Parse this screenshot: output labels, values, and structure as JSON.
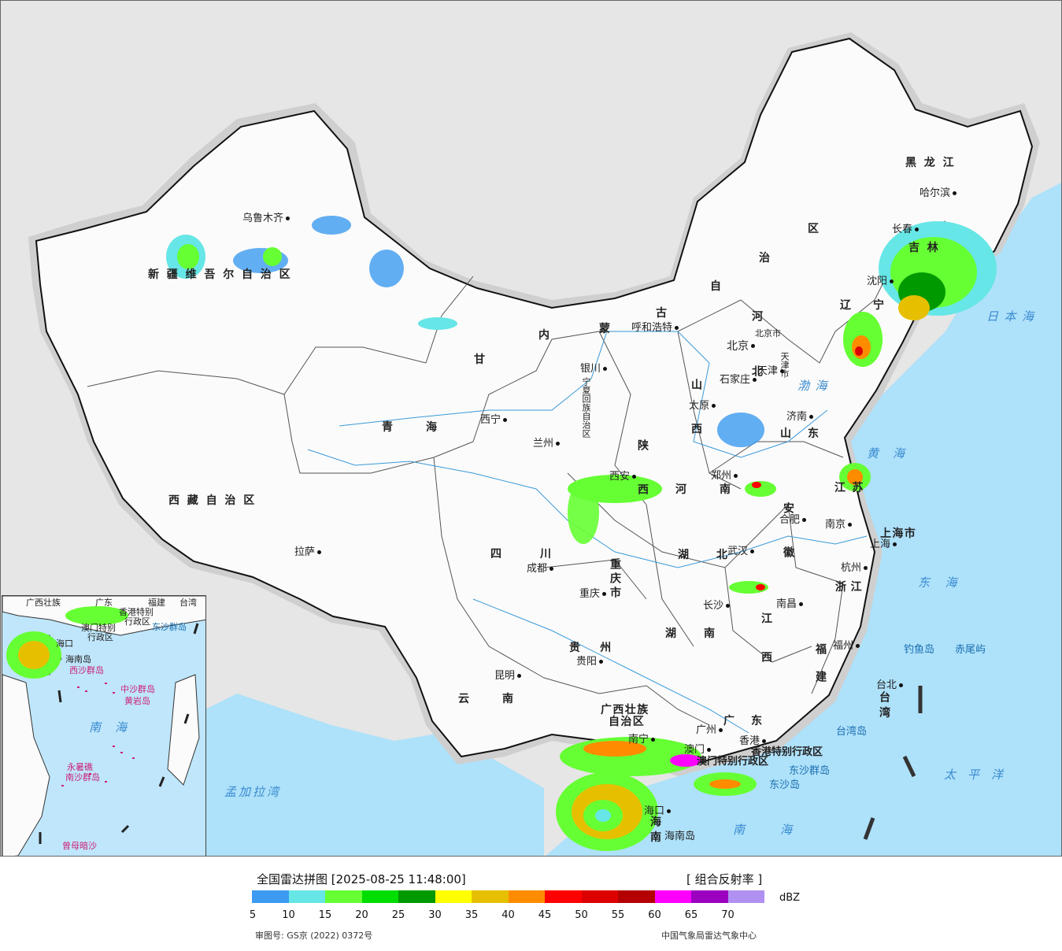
{
  "cities": {
    "urumqi": "乌鲁木齐",
    "lhasa": "拉萨",
    "xining": "西宁",
    "lanzhou": "兰州",
    "yinchuan": "银川",
    "hohhot": "呼和浩特",
    "beijing": "北京",
    "tianjin": "天津",
    "shijiazhuang": "石家庄",
    "taiyuan": "太原",
    "jinan": "济南",
    "zhengzhou": "郑州",
    "xian": "西安",
    "hefei": "合肥",
    "nanjing": "南京",
    "shanghai": "上海",
    "hangzhou": "杭州",
    "wuhan": "武汉",
    "changsha": "长沙",
    "nanchang": "南昌",
    "fuzhou": "福州",
    "taibei": "台北",
    "chengdu": "成都",
    "chongqing": "重庆",
    "guiyang": "贵阳",
    "kunming": "昆明",
    "nanning": "南宁",
    "guangzhou": "广州",
    "hongkong": "香港",
    "macau": "澳门",
    "haikou": "海口",
    "shenyang": "沈阳",
    "changchun": "长春",
    "harbin": "哈尔滨"
  },
  "provinces": {
    "xinjiang": "新疆维吾尔自治区",
    "tibet": "西藏自治区",
    "qinghai": "青海",
    "gansu": "甘",
    "neimenggu_1": "内",
    "neimenggu_2": "蒙",
    "neimenggu_3": "古",
    "neimenggu_4": "自",
    "neimenggu_5": "治",
    "neimenggu_6": "区",
    "ningxia": "宁夏回族自治区",
    "heilongjiang": "黑龙江",
    "jilin": "吉林",
    "liaoning": "辽宁",
    "hebei": "河北",
    "shanxi": "山西",
    "shandong": "山东",
    "henan": "河南",
    "shaanxi": "陕西",
    "sichuan": "四川",
    "chongqing_shi": "重庆市",
    "hubei": "湖北",
    "hunan": "湖南",
    "anhui": "安徽",
    "jiangsu": "江苏",
    "shanghai_shi": "上海市",
    "zhejiang": "浙江",
    "jiangxi": "江西",
    "fujian": "福建",
    "taiwan": "台湾",
    "guizhou": "贵州",
    "yunnan": "云南",
    "guangxi_1": "广西壮族",
    "guangxi_2": "自治区",
    "guangdong": "广东",
    "hainan": "海南",
    "hainan_island": "海南岛",
    "hk_sar": "香港特别行政区",
    "macau_sar": "澳门特别行政区",
    "tianjin_shi": "天津市",
    "beijing_shi": "北京市"
  },
  "seas": {
    "japan_sea": "日本海",
    "yellow_sea": "黄海",
    "bohai": "渤海",
    "east_sea": "东海",
    "pacific": "太平洋",
    "south_sea": "南海",
    "bengal": "孟加拉湾",
    "taiwan_island": "台湾岛",
    "diaoyu": "钓鱼岛",
    "chiwei": "赤尾屿",
    "dongsha": "东沙群岛",
    "dongsha_dao": "东沙岛"
  },
  "inset": {
    "south_sea": "南海",
    "zhongsha": "中沙群岛",
    "huangyan": "黄岩岛",
    "nansha": "南沙群岛",
    "zengmu": "曾母暗沙",
    "yongshu": "永暑礁",
    "xisha": "西沙群岛",
    "dongsha": "东沙群岛",
    "guangxi": "广西壮族",
    "guangdong": "广东",
    "fujian": "福建",
    "taiwan": "台湾",
    "hk": "香港特别",
    "hk2": "行政区",
    "macau": "澳门特别",
    "macau2": "行政区",
    "haikou": "海口",
    "hainan_island": "海南岛"
  },
  "legend": {
    "title": "全国雷达拼图 [2025-08-25 11:48:00]",
    "product": "[ 组合反射率 ]",
    "unit": "dBZ",
    "ticks": [
      "5",
      "10",
      "15",
      "20",
      "25",
      "30",
      "35",
      "40",
      "45",
      "50",
      "55",
      "60",
      "65",
      "70"
    ],
    "colors": [
      "#3c9bf0",
      "#66e6e6",
      "#66ff33",
      "#00dd00",
      "#009900",
      "#ffff00",
      "#e6c000",
      "#ff8c00",
      "#ff0000",
      "#dd0000",
      "#b40000",
      "#ff00ff",
      "#9b00c0",
      "#b090f0"
    ],
    "review_no": "审图号: GS京 (2022) 0372号",
    "agency": "中国气象局雷达气象中心"
  }
}
